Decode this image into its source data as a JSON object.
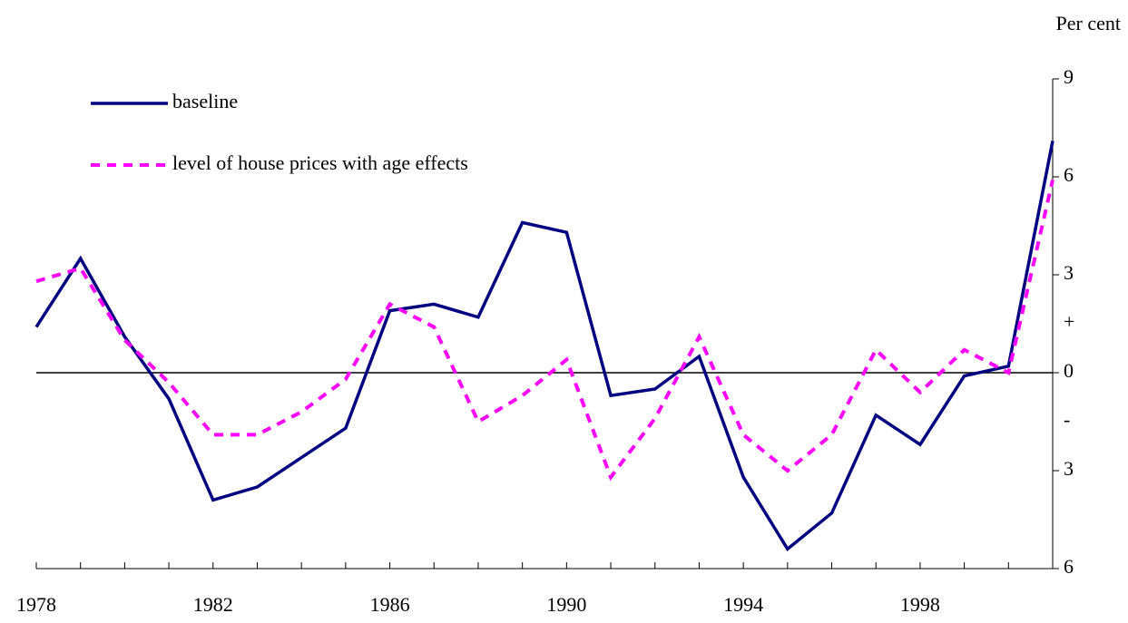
{
  "chart_data": {
    "type": "line",
    "y_axis_label": "Per cent",
    "sign_annotations": [
      "+",
      "-"
    ],
    "x": [
      1978,
      1979,
      1980,
      1981,
      1982,
      1983,
      1984,
      1985,
      1986,
      1987,
      1988,
      1989,
      1990,
      1991,
      1992,
      1993,
      1994,
      1995,
      1996,
      1997,
      1998,
      1999,
      2000,
      2001
    ],
    "series": [
      {
        "name": "baseline",
        "color": "#000080",
        "dash": false,
        "values": [
          1.4,
          3.5,
          1.1,
          -0.8,
          -3.9,
          -3.5,
          -2.6,
          -1.7,
          1.9,
          2.1,
          1.7,
          4.6,
          4.3,
          -0.7,
          -0.5,
          0.5,
          -3.2,
          -5.4,
          -4.3,
          -1.3,
          -2.2,
          -0.1,
          0.2,
          7.1
        ]
      },
      {
        "name": "level of house prices with age effects",
        "color": "#ff00ff",
        "dash": true,
        "values": [
          2.8,
          3.2,
          1.0,
          -0.3,
          -1.9,
          -1.9,
          -1.2,
          -0.2,
          2.1,
          1.4,
          -1.5,
          -0.7,
          0.4,
          -3.2,
          -1.4,
          1.1,
          -1.9,
          -3.0,
          -1.9,
          0.7,
          -0.6,
          0.7,
          0.0,
          5.9
        ]
      }
    ],
    "xlim": [
      1978,
      2001
    ],
    "xticks": [
      1978,
      1982,
      1986,
      1990,
      1994,
      1998
    ],
    "ylim": [
      -6,
      9
    ],
    "yticks": [
      9,
      6,
      3,
      0,
      {
        "value": -3,
        "label": "3"
      },
      {
        "value": -6,
        "label": "6"
      }
    ],
    "zero_line": true,
    "legend": "upper-left"
  }
}
